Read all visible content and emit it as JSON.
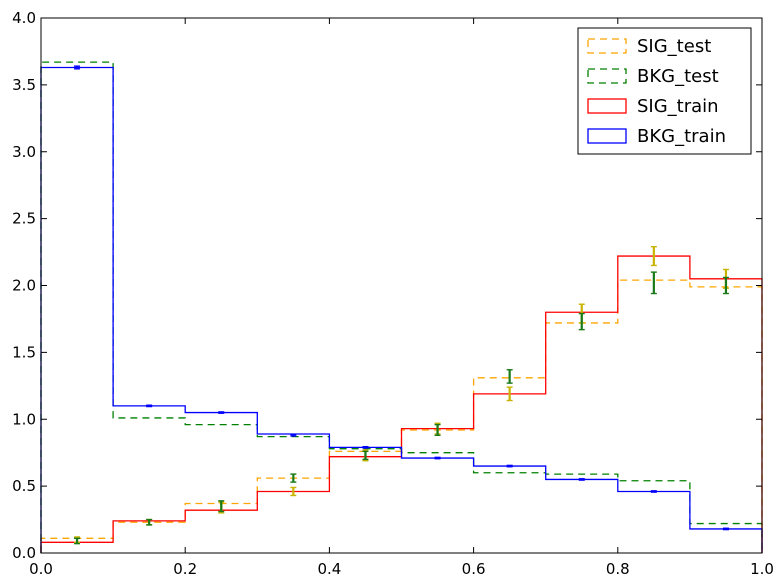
{
  "chart_data": {
    "type": "histogram",
    "title": "",
    "xlabel": "",
    "ylabel": "",
    "xlim": [
      0.0,
      1.0
    ],
    "ylim": [
      0.0,
      4.0
    ],
    "x_ticks": [
      "0.0",
      "0.2",
      "0.4",
      "0.6",
      "0.8",
      "1.0"
    ],
    "y_ticks": [
      "0.0",
      "0.5",
      "1.0",
      "1.5",
      "2.0",
      "2.5",
      "3.0",
      "3.5",
      "4.0"
    ],
    "bin_edges": [
      0.0,
      0.1,
      0.2,
      0.3,
      0.4,
      0.5,
      0.6,
      0.7,
      0.8,
      0.9,
      1.0
    ],
    "legend_position": "top-right",
    "series": [
      {
        "name": "SIG_test",
        "style": "dashed",
        "color": "#ffa500",
        "errorbar_color": "#c8b400",
        "values": [
          0.11,
          0.23,
          0.37,
          0.56,
          0.76,
          0.92,
          1.31,
          1.72,
          2.04,
          1.99
        ],
        "markers": [
          0.1,
          0.23,
          0.34,
          0.46,
          0.73,
          0.93,
          1.19,
          1.79,
          2.22,
          2.05
        ],
        "errors": [
          0.02,
          0.02,
          0.04,
          0.03,
          0.04,
          0.04,
          0.05,
          0.07,
          0.07,
          0.07
        ]
      },
      {
        "name": "BKG_test",
        "style": "dashed",
        "color": "#008000",
        "errorbar_color": "#1a7a1a",
        "values": [
          3.67,
          1.01,
          0.96,
          0.87,
          0.78,
          0.75,
          0.6,
          0.59,
          0.54,
          0.22
        ],
        "markers": [
          0.09,
          0.23,
          0.35,
          0.56,
          0.73,
          0.92,
          1.32,
          1.73,
          2.02,
          2.0
        ],
        "errors": [
          0.02,
          0.02,
          0.04,
          0.03,
          0.03,
          0.04,
          0.05,
          0.06,
          0.08,
          0.06
        ]
      },
      {
        "name": "SIG_train",
        "style": "solid",
        "color": "#ff0000",
        "values": [
          0.08,
          0.24,
          0.32,
          0.46,
          0.72,
          0.93,
          1.19,
          1.8,
          2.22,
          2.05
        ]
      },
      {
        "name": "BKG_train",
        "style": "solid",
        "color": "#0000ff",
        "values": [
          3.63,
          1.1,
          1.05,
          0.89,
          0.79,
          0.71,
          0.65,
          0.55,
          0.46,
          0.18
        ],
        "markers": [
          3.63,
          1.1,
          1.05,
          0.88,
          0.79,
          0.71,
          0.65,
          0.55,
          0.46,
          0.18
        ],
        "errors": [
          0.01,
          0.005,
          0.005,
          0.005,
          0.005,
          0.005,
          0.005,
          0.005,
          0.005,
          0.005
        ]
      }
    ]
  }
}
